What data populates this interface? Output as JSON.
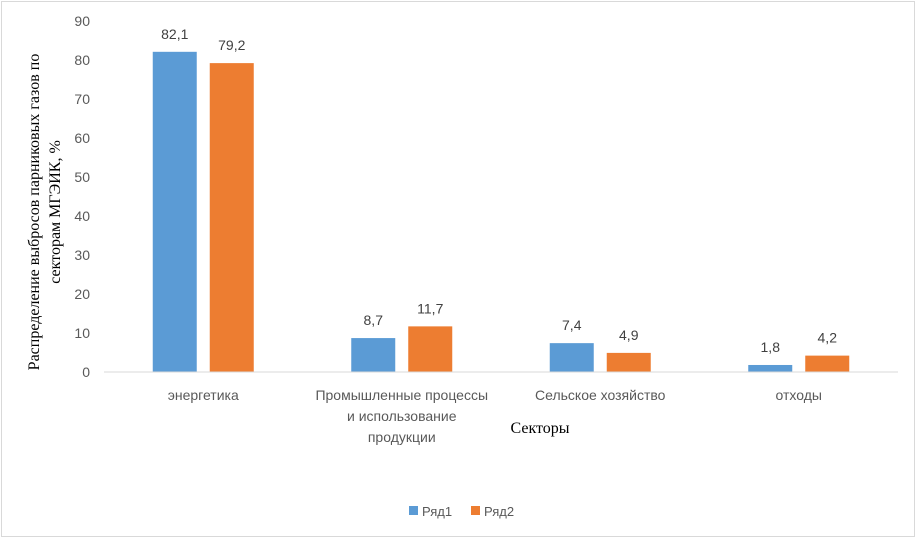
{
  "chart_data": {
    "type": "bar",
    "title": "",
    "xlabel": "Секторы",
    "ylabel": "Распределение выбросов парниковых газов по секторам МГЭИК, %",
    "ylabel_lines": [
      "Распределение выбросов парниковых газов по",
      "секторам МГЭИК, %"
    ],
    "categories": [
      "энергетика",
      "Промышленные процессы и использование продукции",
      "Сельское хозяйство",
      "отходы"
    ],
    "category_lines": [
      [
        "энергетика"
      ],
      [
        "Промышленные процессы",
        "и использование",
        "продукции"
      ],
      [
        "Сельское хозяйство"
      ],
      [
        "отходы"
      ]
    ],
    "series": [
      {
        "name": "Ряд1",
        "values": [
          82.1,
          8.7,
          7.4,
          1.8
        ],
        "labels": [
          "82,1",
          "8,7",
          "7,4",
          "1,8"
        ],
        "color": "#5b9bd5"
      },
      {
        "name": "Ряд2",
        "values": [
          79.2,
          11.7,
          4.9,
          4.2
        ],
        "labels": [
          "79,2",
          "11,7",
          "4,9",
          "4,2"
        ],
        "color": "#ed7d31"
      }
    ],
    "ylim": [
      0,
      90
    ],
    "yticks": [
      0,
      10,
      20,
      30,
      40,
      50,
      60,
      70,
      80,
      90
    ],
    "grid": false,
    "legend_position": "bottom"
  }
}
